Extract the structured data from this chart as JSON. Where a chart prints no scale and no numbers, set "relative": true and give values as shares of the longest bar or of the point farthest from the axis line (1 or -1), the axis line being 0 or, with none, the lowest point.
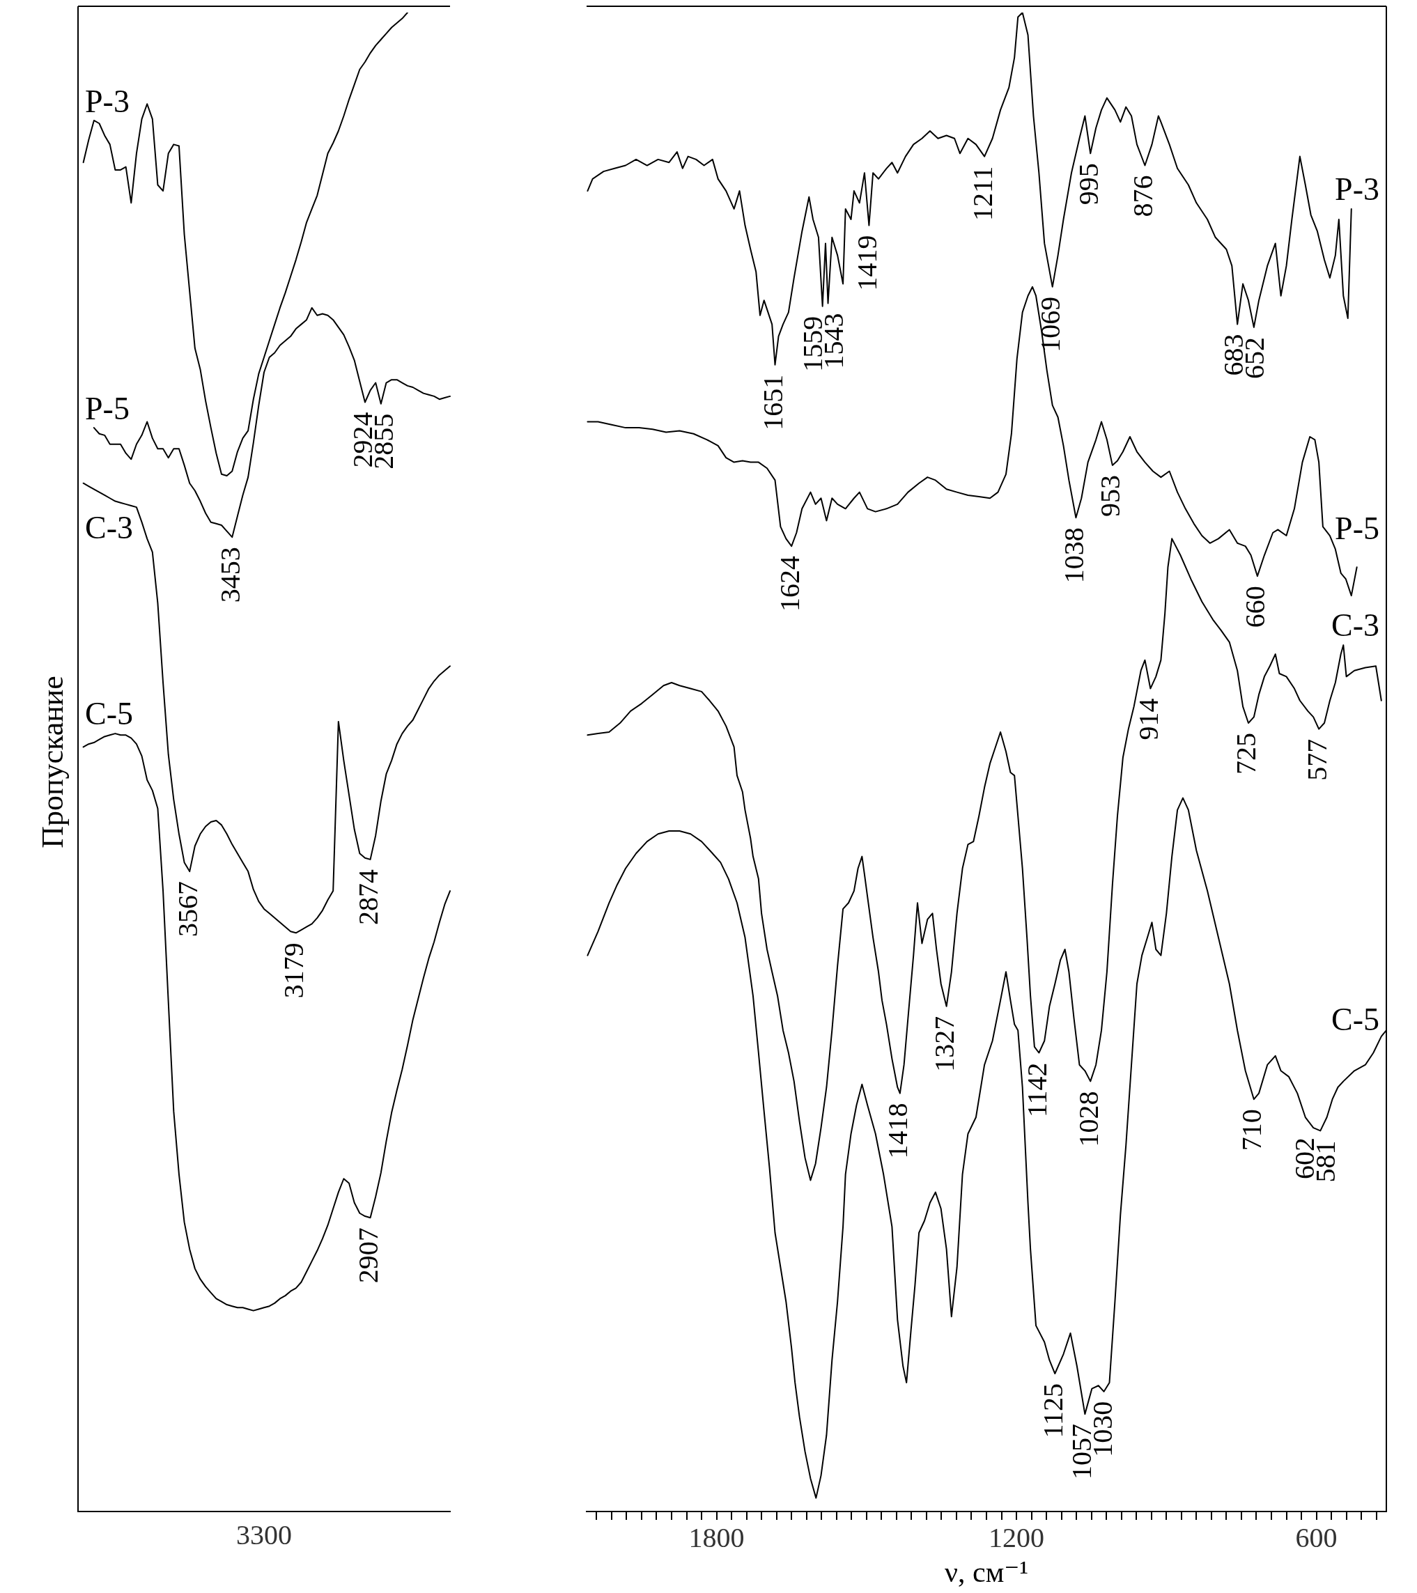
{
  "chart_data": [
    {
      "type": "line",
      "relative": true,
      "marker": "none",
      "ylabel": "Пропускание",
      "categories": [
        null,
        null,
        null,
        null,
        null,
        null,
        null,
        null,
        null,
        null,
        null,
        null,
        null,
        null,
        null,
        null,
        null,
        null,
        null,
        null,
        null,
        null,
        null,
        null,
        null,
        null,
        null,
        null,
        null,
        null,
        null,
        null,
        null,
        null,
        null,
        null,
        null,
        null,
        null,
        null,
        null,
        null,
        null,
        null,
        null,
        null,
        null,
        null,
        null,
        null,
        null,
        null,
        null,
        null,
        null,
        null,
        null,
        null,
        null,
        null,
        null,
        null,
        null,
        null,
        null,
        null,
        null,
        null,
        null,
        null,
        null
      ],
      "series": [
        {
          "name": "P-3",
          "color": "#000000",
          "values": [
            null,
            0.9,
            0.915,
            0.928,
            0.926,
            0.918,
            0.912,
            0.895,
            0.895,
            0.897,
            0.873,
            0.906,
            0.929,
            0.939,
            0.929,
            0.885,
            0.881,
            0.906,
            0.912,
            0.911,
            0.852,
            0.814,
            0.776,
            0.762,
            0.741,
            0.723,
            0.706,
            0.692,
            0.691,
            0.694,
            0.707,
            0.716,
            0.721,
            0.742,
            0.759,
            0.77,
            0.781,
            0.792,
            0.803,
            0.813,
            0.824,
            0.835,
            0.847,
            0.86,
            0.869,
            0.878,
            0.892,
            0.906,
            0.913,
            0.921,
            0.931,
            0.942,
            0.952,
            0.962,
            0.967,
            0.973,
            0.978,
            0.982,
            0.986,
            0.99,
            0.993,
            0.996,
            1.0,
            null,
            null,
            null,
            null,
            null,
            null,
            null,
            null
          ]
        },
        {
          "name": "P-5",
          "color": "#000000",
          "values": [
            null,
            null,
            null,
            0.723,
            0.719,
            0.718,
            0.712,
            0.712,
            0.712,
            0.706,
            0.702,
            0.712,
            0.718,
            0.727,
            0.716,
            0.709,
            0.709,
            0.703,
            0.709,
            0.709,
            0.698,
            0.686,
            0.681,
            0.674,
            0.666,
            0.66,
            0.659,
            0.658,
            0.654,
            0.65,
            0.664,
            0.678,
            0.69,
            0.713,
            0.738,
            0.76,
            0.77,
            0.773,
            0.778,
            0.781,
            0.784,
            0.789,
            0.792,
            0.795,
            0.803,
            0.798,
            0.799,
            0.798,
            0.795,
            0.79,
            0.785,
            0.777,
            0.768,
            0.754,
            0.74,
            0.748,
            0.753,
            0.739,
            0.753,
            0.755,
            0.755,
            0.753,
            0.751,
            0.75,
            0.748,
            0.746,
            0.745,
            0.744,
            0.742,
            0.743,
            0.744
          ]
        },
        {
          "name": "C-3",
          "color": "#000000",
          "values": [
            null,
            0.686,
            0.684,
            0.682,
            0.68,
            0.678,
            0.676,
            0.674,
            0.673,
            0.672,
            0.671,
            0.67,
            0.66,
            0.649,
            0.64,
            0.606,
            0.553,
            0.505,
            0.475,
            0.452,
            0.433,
            0.427,
            0.444,
            0.452,
            0.457,
            0.46,
            0.461,
            0.458,
            0.452,
            0.445,
            0.439,
            0.433,
            0.427,
            0.415,
            0.407,
            0.402,
            0.399,
            0.396,
            0.393,
            0.39,
            0.387,
            0.386,
            0.388,
            0.39,
            0.392,
            0.396,
            0.401,
            0.408,
            0.414,
            0.527,
            0.501,
            0.478,
            0.455,
            0.439,
            0.436,
            0.435,
            0.451,
            0.474,
            0.492,
            0.501,
            0.512,
            0.519,
            0.524,
            0.528,
            0.535,
            0.542,
            0.549,
            0.554,
            0.558,
            0.561,
            0.564
          ]
        },
        {
          "name": "C-5",
          "color": "#000000",
          "values": [
            null,
            0.51,
            0.512,
            0.513,
            0.515,
            0.517,
            0.518,
            0.519,
            0.518,
            0.518,
            0.516,
            0.512,
            0.504,
            0.488,
            0.481,
            0.469,
            0.414,
            0.34,
            0.267,
            0.225,
            0.193,
            0.175,
            0.162,
            0.155,
            0.15,
            0.146,
            0.142,
            0.14,
            0.138,
            0.137,
            0.136,
            0.136,
            0.135,
            0.134,
            0.135,
            0.136,
            0.137,
            0.139,
            0.142,
            0.144,
            0.147,
            0.149,
            0.153,
            0.16,
            0.167,
            0.174,
            0.182,
            0.191,
            0.202,
            0.213,
            0.222,
            0.219,
            0.206,
            0.199,
            0.197,
            0.196,
            0.21,
            0.226,
            0.247,
            0.266,
            0.281,
            0.295,
            0.311,
            0.328,
            0.342,
            0.356,
            0.369,
            0.38,
            0.393,
            0.405,
            0.414
          ]
        }
      ],
      "annotations": [
        "3300",
        {
          "text": "3453",
          "y": 0.65
        },
        {
          "text": "2924",
          "y": 0.74
        },
        {
          "text": "2855",
          "y": 0.739
        },
        {
          "text": "3567",
          "y": 0.427
        },
        {
          "text": "3179",
          "y": 0.386
        },
        {
          "text": "2874",
          "y": 0.435
        },
        {
          "text": "2907",
          "y": 0.196
        }
      ]
    },
    {
      "type": "line",
      "relative": true,
      "marker": "none",
      "xlabel": "ν, см⁻¹",
      "xlim": [
        2060,
        460
      ],
      "xticks": [
        {
          "value": 2040,
          "label": null
        },
        {
          "value": 2010,
          "label": null
        },
        {
          "value": 1980,
          "label": null
        },
        {
          "value": 1950,
          "label": null
        },
        {
          "value": 1920,
          "label": null
        },
        {
          "value": 1890,
          "label": null
        },
        {
          "value": 1860,
          "label": null
        },
        {
          "value": 1830,
          "label": null
        },
        1800,
        {
          "value": 1770,
          "label": null
        },
        {
          "value": 1740,
          "label": null
        },
        {
          "value": 1710,
          "label": null
        },
        {
          "value": 1680,
          "label": null
        },
        {
          "value": 1650,
          "label": null
        },
        {
          "value": 1620,
          "label": null
        },
        {
          "value": 1590,
          "label": null
        },
        {
          "value": 1560,
          "label": null
        },
        {
          "value": 1530,
          "label": null
        },
        {
          "value": 1500,
          "label": null
        },
        {
          "value": 1470,
          "label": null
        },
        {
          "value": 1440,
          "label": null
        },
        {
          "value": 1410,
          "label": null
        },
        {
          "value": 1380,
          "label": null
        },
        {
          "value": 1350,
          "label": null
        },
        {
          "value": 1320,
          "label": null
        },
        {
          "value": 1290,
          "label": null
        },
        {
          "value": 1260,
          "label": null
        },
        {
          "value": 1230,
          "label": null
        },
        1200,
        {
          "value": 1170,
          "label": null
        },
        {
          "value": 1140,
          "label": null
        },
        {
          "value": 1110,
          "label": null
        },
        {
          "value": 1080,
          "label": null
        },
        {
          "value": 1050,
          "label": null
        },
        {
          "value": 1020,
          "label": null
        },
        {
          "value": 990,
          "label": null
        },
        {
          "value": 960,
          "label": null
        },
        {
          "value": 930,
          "label": null
        },
        {
          "value": 900,
          "label": null
        },
        {
          "value": 870,
          "label": null
        },
        {
          "value": 840,
          "label": null
        },
        {
          "value": 810,
          "label": null
        },
        {
          "value": 780,
          "label": null
        },
        {
          "value": 750,
          "label": null
        },
        {
          "value": 720,
          "label": null
        },
        {
          "value": 690,
          "label": null
        },
        {
          "value": 660,
          "label": null
        },
        {
          "value": 630,
          "label": null
        },
        600,
        {
          "value": 570,
          "label": null
        },
        {
          "value": 540,
          "label": null
        },
        {
          "value": 510,
          "label": null
        },
        {
          "value": 480,
          "label": null
        }
      ],
      "series": [
        {
          "name": "P-3",
          "color": "#000000",
          "x": [
            2058,
            2048,
            2026,
            2004,
            1982,
            1961,
            1939,
            1917,
            1895,
            1879,
            1868,
            1857,
            1841,
            1825,
            1808,
            1797,
            1781,
            1765,
            1754,
            1743,
            1732,
            1721,
            1713,
            1705,
            1697,
            1689,
            1683,
            1676,
            1667,
            1656,
            1645,
            1629,
            1615,
            1607,
            1596,
            1588,
            1582,
            1577,
            1569,
            1558,
            1547,
            1542,
            1531,
            1525,
            1514,
            1504,
            1495,
            1487,
            1476,
            1460,
            1449,
            1438,
            1422,
            1406,
            1389,
            1373,
            1357,
            1340,
            1324,
            1313,
            1297,
            1281,
            1264,
            1248,
            1232,
            1215,
            1204,
            1197,
            1188,
            1177,
            1166,
            1155,
            1144,
            1128,
            1117,
            1106,
            1090,
            1074,
            1063,
            1052,
            1041,
            1030,
            1019,
            1003,
            992,
            981,
            970,
            959,
            943,
            929,
            916,
            911,
            894,
            878,
            856,
            840,
            818,
            802,
            780,
            769,
            758,
            747,
            736,
            725,
            715,
            698,
            682,
            671,
            660,
            649,
            633,
            622,
            611,
            598,
            584,
            573,
            562,
            555,
            546,
            537,
            530
          ],
          "values": [
            0.881,
            0.889,
            0.894,
            0.896,
            0.898,
            0.902,
            0.898,
            0.902,
            0.9,
            0.907,
            0.896,
            0.904,
            0.902,
            0.898,
            0.902,
            0.889,
            0.881,
            0.869,
            0.881,
            0.858,
            0.842,
            0.827,
            0.798,
            0.808,
            0.8,
            0.792,
            0.765,
            0.784,
            0.792,
            0.8,
            0.823,
            0.854,
            0.877,
            0.862,
            0.85,
            0.804,
            0.846,
            0.806,
            0.85,
            0.838,
            0.819,
            0.869,
            0.862,
            0.881,
            0.873,
            0.893,
            0.858,
            0.893,
            0.889,
            0.896,
            0.9,
            0.893,
            0.904,
            0.912,
            0.916,
            0.921,
            0.916,
            0.918,
            0.916,
            0.906,
            0.916,
            0.912,
            0.904,
            0.916,
            0.935,
            0.95,
            0.97,
            0.997,
            1.0,
            0.985,
            0.931,
            0.893,
            0.846,
            0.817,
            0.838,
            0.862,
            0.893,
            0.916,
            0.931,
            0.906,
            0.923,
            0.935,
            0.943,
            0.935,
            0.927,
            0.937,
            0.931,
            0.912,
            0.898,
            0.912,
            0.931,
            0.927,
            0.912,
            0.896,
            0.885,
            0.873,
            0.862,
            0.85,
            0.842,
            0.831,
            0.792,
            0.819,
            0.808,
            0.79,
            0.808,
            0.831,
            0.846,
            0.811,
            0.831,
            0.862,
            0.904,
            0.885,
            0.865,
            0.854,
            0.835,
            0.823,
            0.838,
            0.862,
            0.811,
            0.796,
            0.869
          ]
        },
        {
          "name": "P-5",
          "color": "#000000",
          "x": [
            2058,
            2037,
            2010,
            1982,
            1955,
            1928,
            1901,
            1874,
            1846,
            1819,
            1797,
            1781,
            1765,
            1748,
            1732,
            1716,
            1699,
            1683,
            1672,
            1661,
            1650,
            1640,
            1629,
            1612,
            1602,
            1591,
            1580,
            1569,
            1558,
            1542,
            1525,
            1514,
            1498,
            1482,
            1460,
            1438,
            1417,
            1395,
            1378,
            1362,
            1340,
            1319,
            1297,
            1275,
            1253,
            1237,
            1221,
            1210,
            1199,
            1188,
            1177,
            1168,
            1161,
            1150,
            1139,
            1128,
            1117,
            1106,
            1095,
            1081,
            1070,
            1057,
            1041,
            1030,
            1019,
            1008,
            998,
            987,
            973,
            959,
            943,
            927,
            911,
            894,
            878,
            862,
            845,
            829,
            813,
            796,
            774,
            758,
            742,
            731,
            718,
            704,
            687,
            677,
            660,
            644,
            628,
            613,
            603,
            595,
            587,
            573,
            562,
            551,
            541,
            530,
            519
          ],
          "values": [
            0.727,
            0.727,
            0.725,
            0.723,
            0.723,
            0.722,
            0.72,
            0.721,
            0.719,
            0.715,
            0.711,
            0.703,
            0.7,
            0.701,
            0.7,
            0.7,
            0.696,
            0.688,
            0.657,
            0.649,
            0.644,
            0.653,
            0.669,
            0.68,
            0.672,
            0.676,
            0.661,
            0.676,
            0.672,
            0.669,
            0.676,
            0.68,
            0.669,
            0.667,
            0.669,
            0.672,
            0.68,
            0.686,
            0.69,
            0.688,
            0.682,
            0.68,
            0.678,
            0.677,
            0.676,
            0.68,
            0.692,
            0.719,
            0.769,
            0.8,
            0.811,
            0.817,
            0.811,
            0.788,
            0.761,
            0.738,
            0.73,
            0.711,
            0.688,
            0.663,
            0.676,
            0.7,
            0.715,
            0.727,
            0.715,
            0.698,
            0.701,
            0.707,
            0.717,
            0.707,
            0.7,
            0.694,
            0.69,
            0.694,
            0.68,
            0.669,
            0.659,
            0.651,
            0.646,
            0.649,
            0.655,
            0.646,
            0.644,
            0.638,
            0.624,
            0.638,
            0.653,
            0.655,
            0.651,
            0.669,
            0.7,
            0.717,
            0.715,
            0.7,
            0.657,
            0.651,
            0.642,
            0.626,
            0.622,
            0.611,
            0.63
          ]
        },
        {
          "name": "C-3",
          "color": "#000000",
          "x": [
            2058,
            2037,
            2015,
            1993,
            1972,
            1950,
            1928,
            1906,
            1890,
            1874,
            1852,
            1830,
            1814,
            1797,
            1781,
            1765,
            1759,
            1748,
            1743,
            1732,
            1727,
            1716,
            1710,
            1699,
            1689,
            1678,
            1667,
            1656,
            1645,
            1634,
            1623,
            1612,
            1602,
            1591,
            1580,
            1569,
            1558,
            1547,
            1536,
            1525,
            1517,
            1509,
            1504,
            1498,
            1487,
            1476,
            1469,
            1460,
            1449,
            1438,
            1433,
            1425,
            1417,
            1406,
            1398,
            1389,
            1378,
            1368,
            1360,
            1351,
            1340,
            1330,
            1319,
            1308,
            1297,
            1286,
            1275,
            1264,
            1253,
            1242,
            1232,
            1221,
            1212,
            1204,
            1197,
            1188,
            1179,
            1172,
            1164,
            1155,
            1144,
            1134,
            1123,
            1112,
            1103,
            1095,
            1085,
            1074,
            1063,
            1052,
            1041,
            1030,
            1019,
            1008,
            998,
            987,
            976,
            965,
            951,
            943,
            932,
            921,
            911,
            903,
            897,
            889,
            872,
            851,
            829,
            807,
            791,
            774,
            758,
            747,
            736,
            725,
            715,
            704,
            693,
            682,
            674,
            660,
            644,
            633,
            617,
            606,
            595,
            584,
            573,
            562,
            551,
            546,
            540,
            524,
            502,
            481,
            470
          ],
          "values": [
            0.518,
            0.519,
            0.52,
            0.526,
            0.534,
            0.539,
            0.545,
            0.551,
            0.553,
            0.551,
            0.549,
            0.547,
            0.541,
            0.534,
            0.524,
            0.51,
            0.491,
            0.48,
            0.468,
            0.449,
            0.437,
            0.422,
            0.399,
            0.375,
            0.36,
            0.344,
            0.321,
            0.306,
            0.287,
            0.26,
            0.236,
            0.221,
            0.232,
            0.256,
            0.283,
            0.321,
            0.364,
            0.402,
            0.406,
            0.414,
            0.429,
            0.437,
            0.425,
            0.41,
            0.383,
            0.36,
            0.341,
            0.325,
            0.302,
            0.283,
            0.279,
            0.298,
            0.329,
            0.371,
            0.406,
            0.379,
            0.395,
            0.399,
            0.375,
            0.352,
            0.337,
            0.36,
            0.399,
            0.429,
            0.445,
            0.447,
            0.464,
            0.483,
            0.499,
            0.51,
            0.52,
            0.507,
            0.493,
            0.491,
            0.464,
            0.429,
            0.383,
            0.344,
            0.31,
            0.306,
            0.314,
            0.337,
            0.352,
            0.368,
            0.375,
            0.36,
            0.329,
            0.298,
            0.294,
            0.287,
            0.298,
            0.321,
            0.36,
            0.418,
            0.464,
            0.503,
            0.522,
            0.537,
            0.561,
            0.568,
            0.549,
            0.557,
            0.568,
            0.599,
            0.63,
            0.649,
            0.638,
            0.622,
            0.607,
            0.595,
            0.588,
            0.58,
            0.561,
            0.537,
            0.526,
            0.53,
            0.545,
            0.557,
            0.564,
            0.572,
            0.559,
            0.557,
            0.549,
            0.541,
            0.534,
            0.53,
            0.522,
            0.526,
            0.541,
            0.553,
            0.572,
            0.578,
            0.557,
            0.561,
            0.563,
            0.564,
            0.541
          ]
        },
        {
          "name": "C-5",
          "color": "#000000",
          "x": [
            2058,
            2037,
            2015,
            1999,
            1982,
            1961,
            1939,
            1917,
            1895,
            1874,
            1852,
            1830,
            1808,
            1792,
            1776,
            1759,
            1743,
            1727,
            1716,
            1705,
            1694,
            1683,
            1672,
            1661,
            1650,
            1643,
            1634,
            1623,
            1612,
            1601,
            1591,
            1580,
            1569,
            1558,
            1547,
            1542,
            1531,
            1520,
            1509,
            1498,
            1482,
            1466,
            1449,
            1438,
            1427,
            1420,
            1411,
            1403,
            1395,
            1384,
            1373,
            1362,
            1351,
            1340,
            1330,
            1319,
            1308,
            1297,
            1281,
            1264,
            1248,
            1232,
            1221,
            1212,
            1204,
            1197,
            1188,
            1177,
            1172,
            1161,
            1144,
            1134,
            1123,
            1106,
            1092,
            1079,
            1063,
            1049,
            1036,
            1025,
            1014,
            1003,
            992,
            981,
            970,
            959,
            949,
            938,
            929,
            921,
            911,
            900,
            889,
            878,
            867,
            856,
            840,
            818,
            796,
            774,
            758,
            742,
            725,
            715,
            698,
            682,
            671,
            655,
            638,
            622,
            606,
            592,
            579,
            568,
            557,
            546,
            524,
            502,
            486,
            470,
            460
          ],
          "values": [
            0.371,
            0.387,
            0.406,
            0.418,
            0.429,
            0.439,
            0.447,
            0.452,
            0.454,
            0.454,
            0.452,
            0.447,
            0.439,
            0.433,
            0.422,
            0.406,
            0.383,
            0.344,
            0.306,
            0.267,
            0.229,
            0.186,
            0.163,
            0.14,
            0.109,
            0.086,
            0.063,
            0.04,
            0.022,
            0.009,
            0.024,
            0.051,
            0.101,
            0.14,
            0.19,
            0.225,
            0.252,
            0.271,
            0.285,
            0.271,
            0.252,
            0.225,
            0.19,
            0.128,
            0.097,
            0.086,
            0.121,
            0.151,
            0.186,
            0.194,
            0.206,
            0.213,
            0.202,
            0.175,
            0.13,
            0.163,
            0.225,
            0.252,
            0.263,
            0.298,
            0.314,
            0.341,
            0.36,
            0.341,
            0.325,
            0.321,
            0.283,
            0.206,
            0.175,
            0.124,
            0.113,
            0.101,
            0.092,
            0.105,
            0.119,
            0.097,
            0.065,
            0.082,
            0.084,
            0.08,
            0.086,
            0.14,
            0.198,
            0.244,
            0.298,
            0.352,
            0.371,
            0.383,
            0.393,
            0.375,
            0.371,
            0.399,
            0.437,
            0.468,
            0.476,
            0.468,
            0.441,
            0.414,
            0.383,
            0.352,
            0.321,
            0.294,
            0.275,
            0.279,
            0.298,
            0.304,
            0.294,
            0.29,
            0.279,
            0.263,
            0.256,
            0.254,
            0.263,
            0.275,
            0.283,
            0.287,
            0.294,
            0.298,
            0.306,
            0.317,
            0.321
          ]
        }
      ],
      "annotations": [
        {
          "text": "1651",
          "x": 1683,
          "y": 0.765
        },
        {
          "text": "1559",
          "x": 1588,
          "y": 0.804
        },
        {
          "text": "1543",
          "x": 1577,
          "y": 0.806
        },
        {
          "text": "1419",
          "x": 1495,
          "y": 0.858
        },
        {
          "text": "1211",
          "x": 1264,
          "y": 0.904
        },
        {
          "text": "1069",
          "x": 1128,
          "y": 0.817
        },
        {
          "text": "995",
          "x": 1052,
          "y": 0.906
        },
        {
          "text": "876",
          "x": 943,
          "y": 0.898
        },
        {
          "text": "683",
          "x": 758,
          "y": 0.792
        },
        {
          "text": "652",
          "x": 725,
          "y": 0.79
        },
        {
          "text": "1624",
          "x": 1650,
          "y": 0.644
        },
        {
          "text": "1038",
          "x": 1081,
          "y": 0.663
        },
        {
          "text": "953",
          "x": 1008,
          "y": 0.698
        },
        {
          "text": "660",
          "x": 718,
          "y": 0.624
        },
        {
          "text": "914",
          "x": 932,
          "y": 0.549
        },
        {
          "text": "725",
          "x": 736,
          "y": 0.526
        },
        {
          "text": "577",
          "x": 595,
          "y": 0.522
        },
        {
          "text": "1418",
          "x": 1433,
          "y": 0.279
        },
        {
          "text": "1327",
          "x": 1340,
          "y": 0.337
        },
        {
          "text": "1142",
          "x": 1155,
          "y": 0.306
        },
        {
          "text": "1028",
          "x": 1052,
          "y": 0.287
        },
        {
          "text": "710",
          "x": 725,
          "y": 0.275
        },
        {
          "text": "602",
          "x": 606,
          "y": 0.256
        },
        {
          "text": "581",
          "x": 592,
          "y": 0.254
        },
        {
          "text": "1125",
          "x": 1123,
          "y": 0.092
        },
        {
          "text": "1057",
          "x": 1063,
          "y": 0.065
        },
        {
          "text": "1030",
          "x": 1025,
          "y": 0.08
        }
      ]
    }
  ]
}
